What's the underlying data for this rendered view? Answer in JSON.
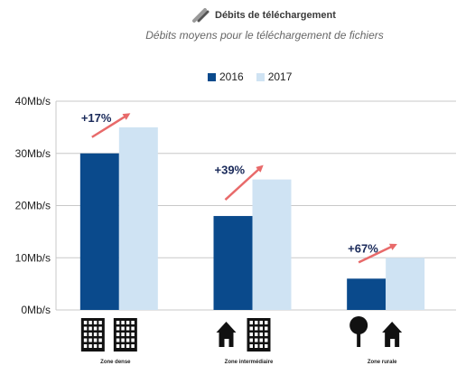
{
  "header": {
    "title": "Débits de téléchargement",
    "subtitle": "Débits moyens pour le téléchargement de fichiers",
    "title_icon": "download-arrow-icon"
  },
  "colors": {
    "series_2016": "#0a4a8c",
    "series_2017": "#cfe3f3",
    "arrow": "#e86a6a",
    "annotation": "#1a2a5a",
    "grid": "#c8c8c8"
  },
  "chart_data": {
    "type": "bar",
    "categories": [
      "Zone dense",
      "Zone intermédiaire",
      "Zone rurale"
    ],
    "series": [
      {
        "name": "2016",
        "values": [
          30,
          18,
          6
        ]
      },
      {
        "name": "2017",
        "values": [
          35,
          25,
          10
        ]
      }
    ],
    "ylim": [
      0,
      40
    ],
    "yticks": [
      0,
      10,
      20,
      30,
      40
    ],
    "ytick_labels": [
      "0Mb/s",
      "10Mb/s",
      "20Mb/s",
      "30Mb/s",
      "40Mb/s"
    ],
    "annotations": [
      "+17%",
      "+39%",
      "+67%"
    ],
    "category_icons": [
      [
        "building-icon",
        "building-icon"
      ],
      [
        "house-icon",
        "building-icon"
      ],
      [
        "tree-icon",
        "house-icon"
      ]
    ],
    "legend_position": "top-center",
    "grid": true
  }
}
